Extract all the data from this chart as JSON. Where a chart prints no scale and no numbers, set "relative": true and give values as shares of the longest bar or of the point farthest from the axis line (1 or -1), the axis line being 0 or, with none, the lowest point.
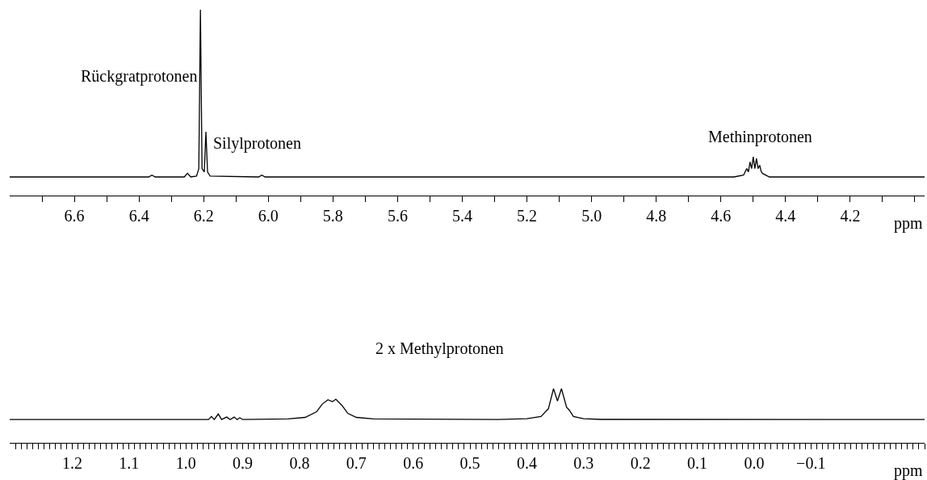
{
  "chart_data": [
    {
      "type": "line",
      "relative": true,
      "xlabel": "ppm",
      "xlim": [
        6.8,
        3.97
      ],
      "marker": "none",
      "line_style": "solid",
      "xticks": [
        {
          "value": 6.7,
          "label": null
        },
        6.6,
        {
          "value": 6.5,
          "label": null
        },
        6.4,
        {
          "value": 6.3,
          "label": null
        },
        {
          "value": 6.2,
          "label": "6.2"
        },
        {
          "value": 6.1,
          "label": null
        },
        {
          "value": 6.0,
          "label": "6.0"
        },
        {
          "value": 5.9,
          "label": null
        },
        5.8,
        {
          "value": 5.7,
          "label": null
        },
        5.6,
        {
          "value": 5.5,
          "label": null
        },
        5.4,
        {
          "value": 5.3,
          "label": null
        },
        5.2,
        {
          "value": 5.1,
          "label": null
        },
        {
          "value": 5.0,
          "label": "5.0"
        },
        {
          "value": 4.9,
          "label": null
        },
        4.8,
        {
          "value": 4.7,
          "label": null
        },
        4.6,
        {
          "value": 4.5,
          "label": null
        },
        4.4,
        {
          "value": 4.3,
          "label": null
        },
        4.2,
        {
          "value": 4.1,
          "label": null
        },
        {
          "value": 4.0,
          "label": null
        }
      ],
      "annotations": [
        {
          "text": "Rückgratprotonen",
          "x": 6.21,
          "y": 0.64
        },
        {
          "text": "Silylprotonen",
          "x": 6.19,
          "y": 0.28
        },
        "Methinprotonen"
      ],
      "series": [
        {
          "color": "#000000",
          "x": [
            6.8,
            6.37,
            6.36,
            6.35,
            6.26,
            6.25,
            6.24,
            6.222,
            6.215,
            6.21,
            6.205,
            6.198,
            6.193,
            6.188,
            6.18,
            6.03,
            6.02,
            6.01,
            4.56,
            4.53,
            4.52,
            4.515,
            4.51,
            4.505,
            4.5,
            4.495,
            4.49,
            4.485,
            4.48,
            4.475,
            4.47,
            4.45,
            3.97
          ],
          "values": [
            0.1,
            0.1,
            0.11,
            0.1,
            0.1,
            0.12,
            0.1,
            0.105,
            0.145,
            1,
            0.145,
            0.127,
            0.343,
            0.127,
            0.105,
            0.1,
            0.11,
            0.1,
            0.1,
            0.11,
            0.145,
            0.127,
            0.181,
            0.145,
            0.208,
            0.145,
            0.199,
            0.145,
            0.163,
            0.127,
            0.118,
            0.1,
            0.1
          ]
        }
      ]
    },
    {
      "type": "line",
      "relative": true,
      "xlabel": "ppm",
      "xlim": [
        1.31,
        -0.3
      ],
      "marker": "none",
      "line_style": "solid",
      "xticks": [
        1.2,
        1.1,
        {
          "value": 1.0,
          "label": "1.0"
        },
        0.9,
        0.8,
        0.7,
        0.6,
        0.5,
        0.4,
        0.3,
        0.2,
        0.1,
        {
          "value": 0.0,
          "label": "0.0"
        },
        {
          "value": -0.1,
          "label": "−0.1"
        },
        {
          "value": -0.2,
          "label": null
        },
        {
          "value": 1.3,
          "label": null
        },
        {
          "value": 1.29,
          "label": null
        },
        {
          "value": 1.28,
          "label": null
        },
        {
          "value": 1.27,
          "label": null
        },
        {
          "value": 1.26,
          "label": null
        },
        {
          "value": 1.25,
          "label": null
        },
        {
          "value": 1.24,
          "label": null
        },
        {
          "value": 1.23,
          "label": null
        },
        {
          "value": 1.22,
          "label": null
        },
        {
          "value": 1.21,
          "label": null
        },
        {
          "value": 1.19,
          "label": null
        },
        {
          "value": 1.18,
          "label": null
        },
        {
          "value": 1.17,
          "label": null
        },
        {
          "value": 1.16,
          "label": null
        },
        {
          "value": 1.15,
          "label": null
        },
        {
          "value": 1.14,
          "label": null
        },
        {
          "value": 1.13,
          "label": null
        },
        {
          "value": 1.12,
          "label": null
        },
        {
          "value": 1.11,
          "label": null
        },
        {
          "value": 1.09,
          "label": null
        },
        {
          "value": 1.08,
          "label": null
        },
        {
          "value": 1.07,
          "label": null
        },
        {
          "value": 1.06,
          "label": null
        },
        {
          "value": 1.05,
          "label": null
        },
        {
          "value": 1.04,
          "label": null
        },
        {
          "value": 1.03,
          "label": null
        },
        {
          "value": 1.02,
          "label": null
        },
        {
          "value": 1.01,
          "label": null
        },
        {
          "value": 0.99,
          "label": null
        },
        {
          "value": 0.98,
          "label": null
        },
        {
          "value": 0.97,
          "label": null
        },
        {
          "value": 0.96,
          "label": null
        },
        {
          "value": 0.95,
          "label": null
        },
        {
          "value": 0.94,
          "label": null
        },
        {
          "value": 0.93,
          "label": null
        },
        {
          "value": 0.92,
          "label": null
        },
        {
          "value": 0.91,
          "label": null
        },
        {
          "value": 0.89,
          "label": null
        },
        {
          "value": 0.88,
          "label": null
        },
        {
          "value": 0.87,
          "label": null
        },
        {
          "value": 0.86,
          "label": null
        },
        {
          "value": 0.85,
          "label": null
        },
        {
          "value": 0.84,
          "label": null
        },
        {
          "value": 0.83,
          "label": null
        },
        {
          "value": 0.82,
          "label": null
        },
        {
          "value": 0.81,
          "label": null
        },
        {
          "value": 0.79,
          "label": null
        },
        {
          "value": 0.78,
          "label": null
        },
        {
          "value": 0.77,
          "label": null
        },
        {
          "value": 0.76,
          "label": null
        },
        {
          "value": 0.75,
          "label": null
        },
        {
          "value": 0.74,
          "label": null
        },
        {
          "value": 0.73,
          "label": null
        },
        {
          "value": 0.72,
          "label": null
        },
        {
          "value": 0.71,
          "label": null
        },
        {
          "value": 0.69,
          "label": null
        },
        {
          "value": 0.68,
          "label": null
        },
        {
          "value": 0.67,
          "label": null
        },
        {
          "value": 0.66,
          "label": null
        },
        {
          "value": 0.65,
          "label": null
        },
        {
          "value": 0.64,
          "label": null
        },
        {
          "value": 0.63,
          "label": null
        },
        {
          "value": 0.62,
          "label": null
        },
        {
          "value": 0.61,
          "label": null
        },
        {
          "value": 0.59,
          "label": null
        },
        {
          "value": 0.58,
          "label": null
        },
        {
          "value": 0.57,
          "label": null
        },
        {
          "value": 0.56,
          "label": null
        },
        {
          "value": 0.55,
          "label": null
        },
        {
          "value": 0.54,
          "label": null
        },
        {
          "value": 0.53,
          "label": null
        },
        {
          "value": 0.52,
          "label": null
        },
        {
          "value": 0.51,
          "label": null
        },
        {
          "value": 0.49,
          "label": null
        },
        {
          "value": 0.48,
          "label": null
        },
        {
          "value": 0.47,
          "label": null
        },
        {
          "value": 0.46,
          "label": null
        },
        {
          "value": 0.45,
          "label": null
        },
        {
          "value": 0.44,
          "label": null
        },
        {
          "value": 0.43,
          "label": null
        },
        {
          "value": 0.42,
          "label": null
        },
        {
          "value": 0.41,
          "label": null
        },
        {
          "value": 0.39,
          "label": null
        },
        {
          "value": 0.38,
          "label": null
        },
        {
          "value": 0.37,
          "label": null
        },
        {
          "value": 0.36,
          "label": null
        },
        {
          "value": 0.35,
          "label": null
        },
        {
          "value": 0.34,
          "label": null
        },
        {
          "value": 0.33,
          "label": null
        },
        {
          "value": 0.32,
          "label": null
        },
        {
          "value": 0.31,
          "label": null
        },
        {
          "value": 0.29,
          "label": null
        },
        {
          "value": 0.28,
          "label": null
        },
        {
          "value": 0.27,
          "label": null
        },
        {
          "value": 0.26,
          "label": null
        },
        {
          "value": 0.25,
          "label": null
        },
        {
          "value": 0.24,
          "label": null
        },
        {
          "value": 0.23,
          "label": null
        },
        {
          "value": 0.22,
          "label": null
        },
        {
          "value": 0.21,
          "label": null
        },
        {
          "value": 0.19,
          "label": null
        },
        {
          "value": 0.18,
          "label": null
        },
        {
          "value": 0.17,
          "label": null
        },
        {
          "value": 0.16,
          "label": null
        },
        {
          "value": 0.15,
          "label": null
        },
        {
          "value": 0.14,
          "label": null
        },
        {
          "value": 0.13,
          "label": null
        },
        {
          "value": 0.12,
          "label": null
        },
        {
          "value": 0.11,
          "label": null
        },
        {
          "value": 0.09,
          "label": null
        },
        {
          "value": 0.08,
          "label": null
        },
        {
          "value": 0.07,
          "label": null
        },
        {
          "value": 0.06,
          "label": null
        },
        {
          "value": 0.05,
          "label": null
        },
        {
          "value": 0.04,
          "label": null
        },
        {
          "value": 0.03,
          "label": null
        },
        {
          "value": 0.02,
          "label": null
        },
        {
          "value": 0.01,
          "label": null
        },
        {
          "value": -0.01,
          "label": null
        },
        {
          "value": -0.02,
          "label": null
        },
        {
          "value": -0.03,
          "label": null
        },
        {
          "value": -0.04,
          "label": null
        },
        {
          "value": -0.05,
          "label": null
        },
        {
          "value": -0.06,
          "label": null
        },
        {
          "value": -0.07,
          "label": null
        },
        {
          "value": -0.08,
          "label": null
        },
        {
          "value": -0.09,
          "label": null
        },
        {
          "value": -0.11,
          "label": null
        },
        {
          "value": -0.12,
          "label": null
        },
        {
          "value": -0.13,
          "label": null
        },
        {
          "value": -0.14,
          "label": null
        },
        {
          "value": -0.15,
          "label": null
        },
        {
          "value": -0.16,
          "label": null
        },
        {
          "value": -0.17,
          "label": null
        },
        {
          "value": -0.18,
          "label": null
        },
        {
          "value": -0.19,
          "label": null
        },
        {
          "value": -0.21,
          "label": null
        },
        {
          "value": -0.22,
          "label": null
        },
        {
          "value": -0.23,
          "label": null
        },
        {
          "value": -0.24,
          "label": null
        },
        {
          "value": -0.25,
          "label": null
        },
        {
          "value": -0.26,
          "label": null
        },
        {
          "value": -0.27,
          "label": null
        },
        {
          "value": -0.28,
          "label": null
        },
        {
          "value": -0.29,
          "label": null
        },
        {
          "value": -0.3,
          "label": null
        }
      ],
      "annotations": [
        "2 x Methylprotonen"
      ],
      "series": [
        {
          "color": "#000000",
          "x": [
            1.31,
            0.96,
            0.955,
            0.95,
            0.943,
            0.937,
            0.928,
            0.922,
            0.915,
            0.91,
            0.905,
            0.9,
            0.82,
            0.79,
            0.77,
            0.76,
            0.75,
            0.742,
            0.736,
            0.725,
            0.715,
            0.7,
            0.67,
            0.45,
            0.4,
            0.375,
            0.362,
            0.353,
            0.346,
            0.339,
            0.33,
            0.325,
            0.318,
            0.3,
            0.27,
            -0.3
          ],
          "values": [
            0.43,
            0.43,
            0.487,
            0.43,
            0.533,
            0.43,
            0.476,
            0.43,
            0.476,
            0.43,
            0.464,
            0.43,
            0.441,
            0.47,
            0.573,
            0.715,
            0.795,
            0.761,
            0.806,
            0.687,
            0.544,
            0.47,
            0.441,
            0.43,
            0.447,
            0.487,
            0.63,
            1,
            0.772,
            1,
            0.658,
            0.601,
            0.487,
            0.447,
            0.433,
            0.43
          ]
        }
      ]
    }
  ]
}
